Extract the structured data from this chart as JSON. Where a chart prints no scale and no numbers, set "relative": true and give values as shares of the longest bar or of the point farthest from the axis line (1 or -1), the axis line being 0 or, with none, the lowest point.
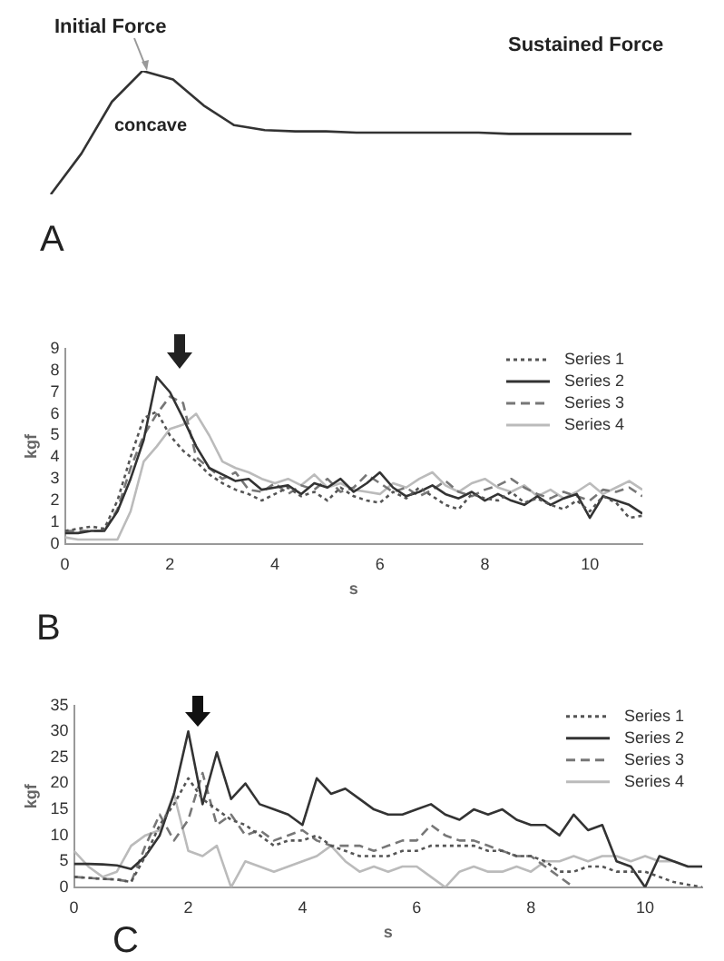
{
  "chart_data": [
    {
      "type": "line",
      "relative": true,
      "tick_labels": false,
      "categories": [
        null,
        null,
        null,
        null,
        null,
        null,
        null,
        null,
        null,
        null,
        null,
        null,
        null,
        null,
        null,
        null,
        null,
        null,
        null,
        null
      ],
      "series": [
        {
          "color": "#333333",
          "values": [
            0,
            0.33,
            0.75,
            1.0,
            0.93,
            0.72,
            0.56,
            0.52,
            0.51,
            0.51,
            0.5,
            0.5,
            0.5,
            0.5,
            0.5,
            0.49,
            0.49,
            0.49,
            0.49,
            0.49
          ]
        }
      ],
      "annotations": [
        "Initial Force",
        "concave",
        "Sustained Force",
        "A"
      ]
    },
    {
      "type": "line",
      "xlabel": "s",
      "ylabel": "kgf",
      "legend": "top right",
      "xlim": [
        0,
        11
      ],
      "xticks": [
        0,
        2,
        4,
        6,
        8,
        10
      ],
      "ylim": [
        0,
        9
      ],
      "yticks": [
        0,
        1,
        2,
        3,
        4,
        5,
        6,
        7,
        8,
        9
      ],
      "x": [
        0,
        0.25,
        0.5,
        0.75,
        1,
        1.25,
        1.5,
        1.75,
        2,
        2.25,
        2.5,
        2.75,
        3,
        3.25,
        3.5,
        3.75,
        4,
        4.25,
        4.5,
        4.75,
        5,
        5.25,
        5.5,
        5.75,
        6,
        6.25,
        6.5,
        6.75,
        7,
        7.25,
        7.5,
        7.75,
        8,
        8.25,
        8.5,
        8.75,
        9,
        9.25,
        9.5,
        9.75,
        10,
        10.25,
        10.5,
        10.75,
        11
      ],
      "series": [
        {
          "name": "Series 1",
          "color": "#555555",
          "line_style": "dotted",
          "values": [
            0.6,
            0.7,
            0.8,
            0.7,
            2.0,
            4.0,
            5.8,
            6.1,
            5.0,
            4.3,
            3.8,
            3.2,
            2.8,
            2.5,
            2.3,
            2.0,
            2.3,
            2.6,
            2.2,
            2.4,
            2.0,
            2.6,
            2.2,
            2.0,
            1.9,
            2.4,
            2.1,
            2.6,
            2.2,
            1.8,
            1.6,
            2.3,
            2.1,
            2.0,
            2.4,
            1.9,
            2.1,
            1.8,
            1.6,
            2.0,
            1.5,
            2.2,
            1.9,
            1.2,
            1.3
          ]
        },
        {
          "name": "Series 2",
          "color": "#333333",
          "line_style": "solid",
          "values": [
            0.5,
            0.5,
            0.6,
            0.6,
            1.5,
            3.0,
            4.8,
            7.7,
            7.0,
            5.8,
            4.5,
            3.5,
            3.2,
            2.9,
            3.0,
            2.5,
            2.6,
            2.7,
            2.3,
            2.8,
            2.6,
            3.0,
            2.4,
            2.8,
            3.3,
            2.6,
            2.2,
            2.4,
            2.7,
            2.3,
            2.1,
            2.4,
            2.0,
            2.3,
            2.0,
            1.8,
            2.2,
            1.8,
            2.1,
            2.3,
            1.2,
            2.2,
            2.0,
            1.8,
            1.4
          ]
        },
        {
          "name": "Series 3",
          "color": "#777777",
          "line_style": "dashed",
          "values": [
            0.6,
            0.6,
            0.6,
            0.6,
            1.6,
            3.5,
            5.0,
            6.0,
            6.8,
            6.5,
            4.0,
            3.5,
            3.0,
            3.3,
            2.5,
            2.4,
            2.8,
            2.3,
            2.7,
            2.5,
            3.0,
            2.4,
            2.6,
            3.2,
            2.8,
            2.4,
            2.6,
            2.2,
            2.5,
            2.9,
            2.4,
            2.2,
            2.5,
            2.7,
            3.0,
            2.6,
            2.3,
            2.1,
            2.4,
            2.2,
            2.0,
            2.5,
            2.4,
            2.6,
            2.2
          ]
        },
        {
          "name": "Series 4",
          "color": "#bbbbbb",
          "line_style": "solid",
          "values": [
            0.3,
            0.2,
            0.2,
            0.2,
            0.2,
            1.5,
            3.8,
            4.5,
            5.3,
            5.5,
            6.0,
            5.0,
            3.8,
            3.5,
            3.3,
            3.0,
            2.8,
            3.0,
            2.7,
            3.2,
            2.6,
            2.8,
            2.5,
            2.4,
            2.3,
            2.8,
            2.6,
            3.0,
            3.3,
            2.7,
            2.4,
            2.8,
            3.0,
            2.6,
            2.4,
            2.7,
            2.2,
            2.5,
            2.1,
            2.4,
            2.8,
            2.3,
            2.6,
            2.9,
            2.5
          ]
        }
      ],
      "annotations": [
        "B"
      ]
    },
    {
      "type": "line",
      "xlabel": "s",
      "ylabel": "kgf",
      "legend": "top right",
      "xlim": [
        0,
        11
      ],
      "xticks": [
        0,
        2,
        4,
        6,
        8,
        10
      ],
      "ylim": [
        0,
        35
      ],
      "yticks": [
        0,
        5,
        10,
        15,
        20,
        25,
        30,
        35
      ],
      "x": [
        0,
        0.25,
        0.5,
        0.75,
        1,
        1.25,
        1.5,
        1.75,
        2,
        2.25,
        2.5,
        2.75,
        3,
        3.25,
        3.5,
        3.75,
        4,
        4.25,
        4.5,
        4.75,
        5,
        5.25,
        5.5,
        5.75,
        6,
        6.25,
        6.5,
        6.75,
        7,
        7.25,
        7.5,
        7.75,
        8,
        8.25,
        8.5,
        8.75,
        9,
        9.25,
        9.5,
        9.75,
        10,
        10.25,
        10.5,
        10.75,
        11
      ],
      "series": [
        {
          "name": "Series 1",
          "color": "#555555",
          "line_style": "dotted",
          "values": [
            2,
            1.8,
            1.6,
            1.5,
            1,
            6,
            12,
            16,
            21,
            17,
            15,
            13,
            12,
            10,
            8,
            9,
            9,
            10,
            8,
            7,
            6,
            6,
            6,
            7,
            7,
            8,
            8,
            8,
            8,
            7,
            7,
            6,
            6,
            5,
            3,
            3,
            4,
            4,
            3,
            3,
            3,
            2,
            1,
            0.5,
            0
          ]
        },
        {
          "name": "Series 2",
          "color": "#333333",
          "line_style": "solid",
          "values": [
            4.5,
            4.5,
            4.4,
            4.2,
            3.5,
            6,
            10,
            18,
            30,
            16,
            26,
            17,
            20,
            16,
            15,
            14,
            12,
            21,
            18,
            19,
            17,
            15,
            14,
            14,
            15,
            16,
            14,
            13,
            15,
            14,
            15,
            13,
            12,
            12,
            10,
            14,
            11,
            12,
            5,
            4,
            0,
            6,
            5,
            4,
            4
          ]
        },
        {
          "name": "Series 3",
          "color": "#777777",
          "line_style": "dashed",
          "values": [
            2,
            1.8,
            1.6,
            1.5,
            1,
            8,
            14,
            9,
            13,
            22,
            12,
            14,
            10,
            11,
            9,
            10,
            11,
            9,
            8,
            8,
            8,
            7,
            8,
            9,
            9,
            12,
            10,
            9,
            9,
            8,
            7,
            6,
            6,
            4,
            2,
            0,
            null,
            null,
            null,
            null,
            null,
            null,
            null,
            null,
            null
          ]
        },
        {
          "name": "Series 4",
          "color": "#bbbbbb",
          "line_style": "solid",
          "values": [
            7,
            4,
            2,
            3,
            8,
            10,
            11,
            18,
            7,
            6,
            8,
            0,
            5,
            4,
            3,
            4,
            5,
            6,
            8,
            5,
            3,
            4,
            3,
            4,
            4,
            2,
            0,
            3,
            4,
            3,
            3,
            4,
            3,
            5,
            5,
            6,
            5,
            6,
            6,
            5,
            6,
            5,
            5,
            4,
            4
          ]
        }
      ],
      "annotations": [
        "C"
      ]
    }
  ]
}
